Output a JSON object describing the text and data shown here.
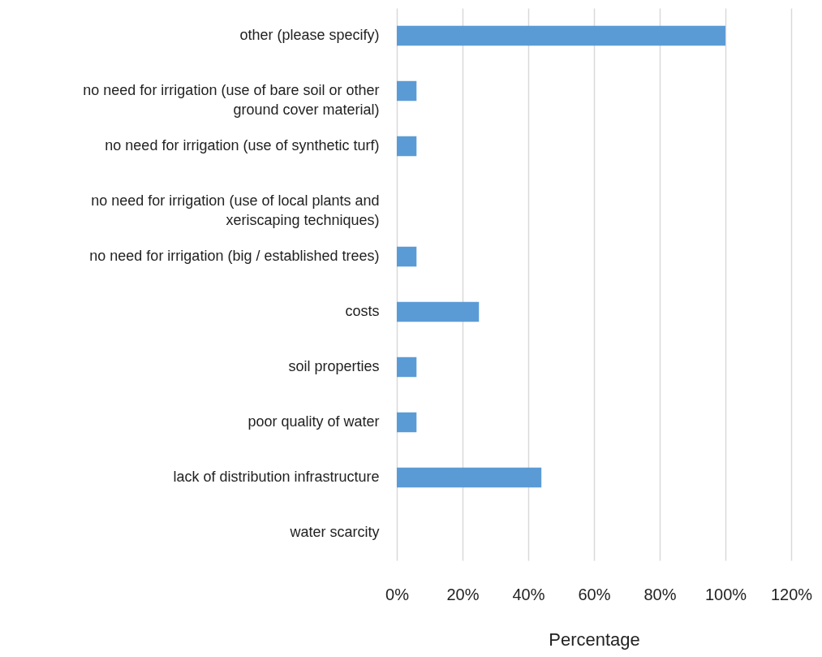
{
  "chart_data": {
    "type": "bar",
    "orientation": "horizontal",
    "xlabel": "Percentage",
    "categories": [
      "other  (please specify)",
      "no need for irrigation (use of bare soil or other ground cover material)",
      "no need for irrigation (use of synthetic turf)",
      "no need for irrigation (use of local plants and xeriscaping techniques)",
      "no need for irrigation (big / established trees)",
      "costs",
      "soil properties",
      "poor quality of water",
      "lack of distribution infrastructure",
      "water scarcity"
    ],
    "values": [
      100,
      6,
      6,
      0,
      6,
      25,
      6,
      6,
      44,
      0
    ],
    "color": "#5b9bd5",
    "xlim": [
      0,
      120
    ],
    "xticks": [
      {
        "value": 0,
        "label": "0%"
      },
      {
        "value": 20,
        "label": "20%"
      },
      {
        "value": 40,
        "label": "40%"
      },
      {
        "value": 60,
        "label": "60%"
      },
      {
        "value": 80,
        "label": "80%"
      },
      {
        "value": 100,
        "label": "100%"
      },
      {
        "value": 120,
        "label": "120%"
      }
    ],
    "grid": "x"
  }
}
